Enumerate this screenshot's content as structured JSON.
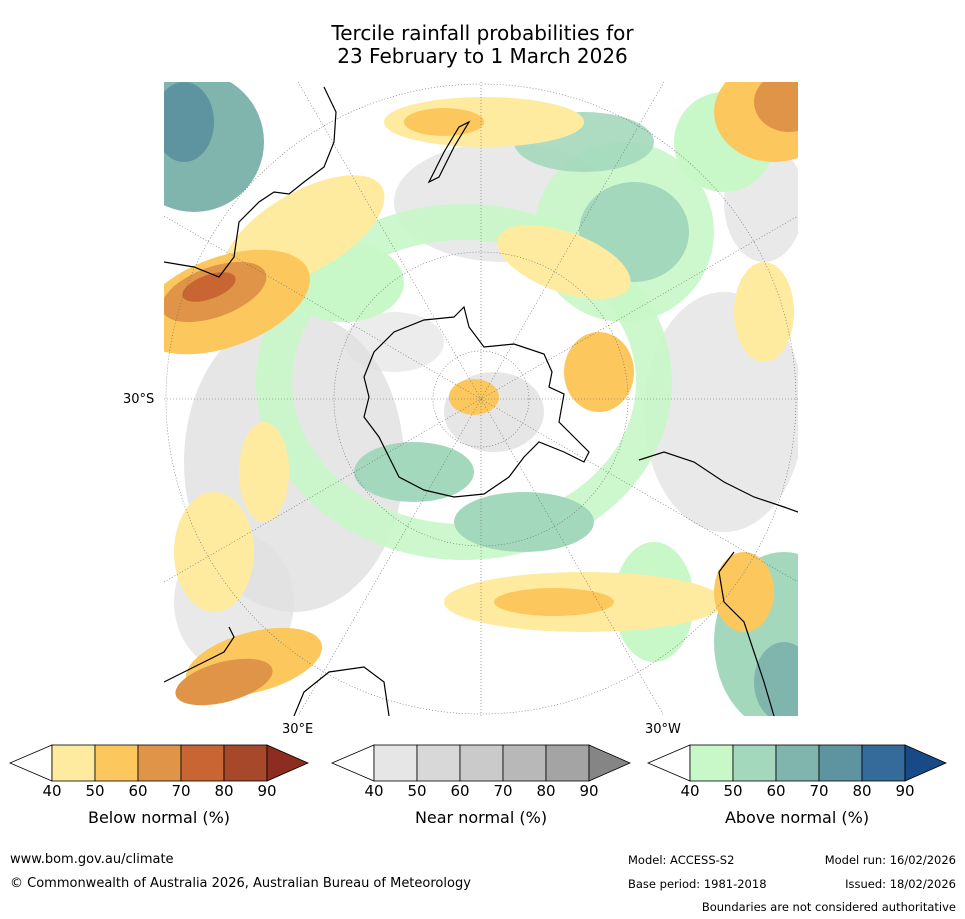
{
  "title": {
    "line1": "Tercile rainfall probabilities for",
    "line2": "23 February to 1 March 2026"
  },
  "map": {
    "lat_label": "30°S",
    "lon_label_east": "30°E",
    "lon_label_west": "30°W"
  },
  "colorbars": [
    {
      "label": "Below normal (%)",
      "ticks": [
        "40",
        "50",
        "60",
        "70",
        "80",
        "90"
      ],
      "colors": [
        "#ffffff",
        "#feeba0",
        "#fcc85e",
        "#e09448",
        "#c96532",
        "#a8482a",
        "#8c2d1f"
      ]
    },
    {
      "label": "Near normal (%)",
      "ticks": [
        "40",
        "50",
        "60",
        "70",
        "80",
        "90"
      ],
      "colors": [
        "#ffffff",
        "#e6e6e6",
        "#d8d8d8",
        "#cacaca",
        "#b8b8b8",
        "#a4a4a4",
        "#858585"
      ]
    },
    {
      "label": "Above normal (%)",
      "ticks": [
        "40",
        "50",
        "60",
        "70",
        "80",
        "90"
      ],
      "colors": [
        "#ffffff",
        "#c8f7c8",
        "#a4d8bc",
        "#7fb5ad",
        "#5d94a0",
        "#356b9b",
        "#174a86"
      ]
    }
  ],
  "footer": {
    "url": "www.bom.gov.au/climate",
    "copyright": "© Commonwealth of Australia 2026, Australian Bureau of Meteorology",
    "model": "Model: ACCESS-S2",
    "model_run": "Model run: 16/02/2026",
    "base_period": "Base period: 1981-2018",
    "issued": "Issued: 18/02/2026",
    "disclaimer": "Boundaries are not considered authoritative"
  }
}
